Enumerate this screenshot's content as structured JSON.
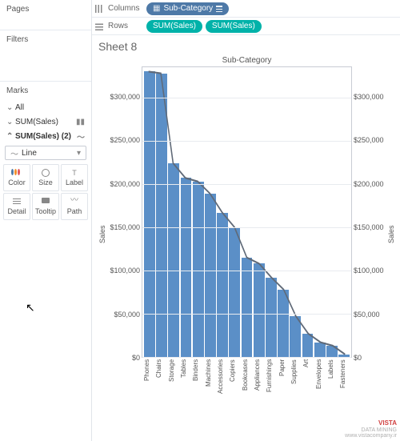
{
  "panels": {
    "pages": "Pages",
    "filters": "Filters",
    "marks": "Marks"
  },
  "shelves": {
    "columns_label": "Columns",
    "rows_label": "Rows",
    "column_pill": "Sub-Category",
    "row_pill_1": "SUM(Sales)",
    "row_pill_2": "SUM(Sales)"
  },
  "marks": {
    "all": "All",
    "sum1": "SUM(Sales)",
    "sum2": "SUM(Sales) (2)",
    "mark_type": "Line",
    "cards": {
      "color": "Color",
      "size": "Size",
      "label": "Label",
      "detail": "Detail",
      "tooltip": "Tooltip",
      "path": "Path"
    }
  },
  "sheet": {
    "title": "Sheet 8",
    "chart_title": "Sub-Category",
    "y_label_left": "Sales",
    "y_label_right": "Sales"
  },
  "chart": {
    "type": "bar+line",
    "categories": [
      "Phones",
      "Chairs",
      "Storage",
      "Tables",
      "Binders",
      "Machines",
      "Accessories",
      "Copiers",
      "Bookcases",
      "Appliances",
      "Furnishings",
      "Paper",
      "Supplies",
      "Art",
      "Envelopes",
      "Labels",
      "Fasteners"
    ],
    "values": [
      330000,
      328000,
      224000,
      207000,
      203000,
      189000,
      167000,
      150000,
      115000,
      108000,
      92000,
      78000,
      47000,
      27000,
      17000,
      13000,
      3000
    ],
    "ylim": [
      0,
      335000
    ],
    "yticks": [
      0,
      50000,
      100000,
      150000,
      200000,
      250000,
      300000
    ],
    "ytick_labels": [
      "$0",
      "$50,000",
      "$100,000",
      "$150,000",
      "$200,000",
      "$250,000",
      "$300,000"
    ],
    "bar_color": "#5b8fc7",
    "line_color": "#606a78",
    "background_color": "#ffffff",
    "grid_color": "#e8ebef",
    "axis_color": "#c8ccd4",
    "title_fontsize": 10,
    "label_fontsize": 9,
    "tick_fontsize": 9
  },
  "watermark": {
    "brand": "VISTA",
    "sub": "DATA MINING",
    "url": "www.vistacompany.ir"
  }
}
